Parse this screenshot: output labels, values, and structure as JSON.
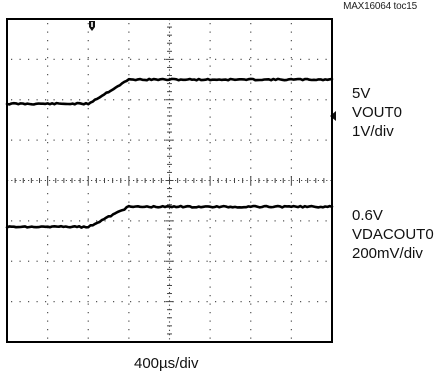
{
  "figure": {
    "tag": "MAX16064 toc15"
  },
  "chart_data": {
    "type": "line",
    "title": "",
    "timebase": "400µs/div",
    "x_divisions": 8,
    "y_divisions": 8,
    "grid": true,
    "series": [
      {
        "name": "VOUT0",
        "offset_label": "5V",
        "scale_label": "1V/div",
        "units": "div",
        "x": [
          0,
          2.0,
          3.0,
          8.0
        ],
        "y": [
          5.9,
          5.9,
          6.5,
          6.5
        ]
      },
      {
        "name": "VDACOUT0",
        "offset_label": "0.6V",
        "scale_label": "200mV/div",
        "units": "div",
        "x": [
          0,
          2.0,
          3.0,
          8.0
        ],
        "y": [
          2.85,
          2.85,
          3.35,
          3.35
        ]
      }
    ]
  }
}
